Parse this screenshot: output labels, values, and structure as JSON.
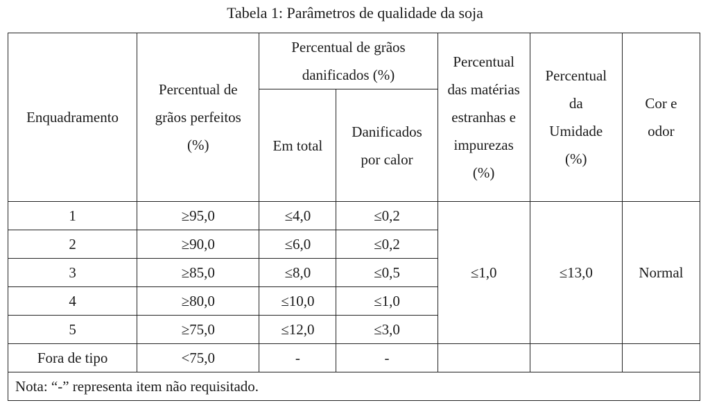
{
  "caption": "Tabela 1: Parâmetros de qualidade da soja",
  "headers": {
    "enquadramento": "Enquadramento",
    "perfeitos": "Percentual de grãos perfeitos (%)",
    "danificados": "Percentual de grãos danificados (%)",
    "em_total": "Em total",
    "por_calor": "Danificados por calor",
    "materias": "Percentual das matérias estranhas e impurezas (%)",
    "umidade": "Percentual da Umidade (%)",
    "cor_odor": "Cor e odor"
  },
  "rows": [
    {
      "tipo": "1",
      "perfeitos": "≥95,0",
      "em_total": "≤4,0",
      "por_calor": "≤0,2"
    },
    {
      "tipo": "2",
      "perfeitos": "≥90,0",
      "em_total": "≤6,0",
      "por_calor": "≤0,2"
    },
    {
      "tipo": "3",
      "perfeitos": "≥85,0",
      "em_total": "≤8,0",
      "por_calor": "≤0,5"
    },
    {
      "tipo": "4",
      "perfeitos": "≥80,0",
      "em_total": "≤10,0",
      "por_calor": "≤1,0"
    },
    {
      "tipo": "5",
      "perfeitos": "≥75,0",
      "em_total": "≤12,0",
      "por_calor": "≤3,0"
    }
  ],
  "merged": {
    "materias": "≤1,0",
    "umidade": "≤13,0",
    "cor_odor": "Normal"
  },
  "fora_de_tipo": {
    "tipo": "Fora de tipo",
    "perfeitos": "<75,0",
    "em_total": "-",
    "por_calor": "-"
  },
  "note": "Nota: “-” representa item não requisitado."
}
